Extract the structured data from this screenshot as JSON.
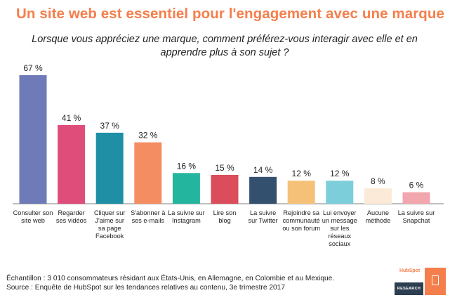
{
  "title": "Un site web est essentiel pour l'engagement avec une marque",
  "subtitle": "Lorsque vous appréciez une marque, comment préférez-vous interagir avec elle et en apprendre plus à son sujet ?",
  "footnotes": {
    "sample": "Échantillon : 3 010 consommateurs résidant aux États-Unis, en Allemagne, en Colombie et au Mexique.",
    "source": "Source : Enquête de HubSpot sur les tendances relatives au contenu, 3e trimestre 2017"
  },
  "logo": {
    "wordmark": "HubSpot",
    "badge": "RESEARCH",
    "icon": "report-icon"
  },
  "chart_data": {
    "type": "bar",
    "categories": [
      "Consulter son site web",
      "Regarder ses vidéos",
      "Cliquer sur J'aime sur sa page Facebook",
      "S'abonner à ses e-mails",
      "La suivre sur Instagram",
      "Lire son blog",
      "La suivre sur Twitter",
      "Rejoindre sa communauté ou son forum",
      "Lui envoyer un message sur les réseaux sociaux",
      "Aucune méthode",
      "La suivre sur Snapchat"
    ],
    "category_lines": [
      [
        "Consulter son",
        "site web"
      ],
      [
        "Regarder",
        "ses vidéos"
      ],
      [
        "Cliquer sur",
        "J'aime sur",
        "sa page",
        "Facebook"
      ],
      [
        "S'abonner à",
        "ses e-mails"
      ],
      [
        "La suivre sur",
        "Instagram"
      ],
      [
        "Lire son",
        "blog"
      ],
      [
        "La suivre",
        "sur Twitter"
      ],
      [
        "Rejoindre sa",
        "communauté",
        "ou son forum"
      ],
      [
        "Lui envoyer",
        "un message",
        "sur les",
        "réseaux",
        "sociaux"
      ],
      [
        "Aucune",
        "méthode"
      ],
      [
        "La suivre sur",
        "Snapchat"
      ]
    ],
    "values": [
      67,
      41,
      37,
      32,
      16,
      15,
      14,
      12,
      12,
      8,
      6
    ],
    "value_labels": [
      "67 %",
      "41 %",
      "37 %",
      "32 %",
      "16 %",
      "15 %",
      "14 %",
      "12 %",
      "12 %",
      "8 %",
      "6 %"
    ],
    "colors": [
      "#6f7ab8",
      "#df4e7a",
      "#1f8fa6",
      "#f58d62",
      "#23b59e",
      "#dc4d5b",
      "#34506f",
      "#f5c178",
      "#7ccfda",
      "#fbead7",
      "#f2a6ad"
    ],
    "ylim": [
      0,
      67
    ],
    "grid": false,
    "legend": "none"
  }
}
